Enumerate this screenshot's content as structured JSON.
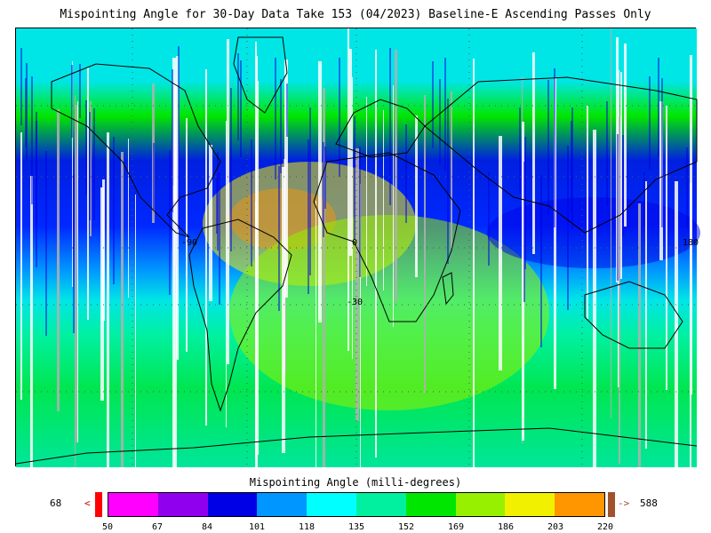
{
  "title": "Mispointing Angle for 30-Day Data Take 153 (04/2023) Baseline-E Ascending Passes Only",
  "map": {
    "lat_labels": [
      "0",
      "-30"
    ],
    "lon_labels": [
      "-90",
      "180"
    ],
    "projection": "cylindrical",
    "missing_color": "#b0b0b0"
  },
  "colorbar": {
    "title": "Mispointing Angle (milli-degrees)",
    "min_value": "68",
    "max_value": "588",
    "under_arrow": "<",
    "over_arrow": "->",
    "under_color": "#ff0000",
    "over_color": "#a0522d",
    "tick_labels": [
      "50",
      "67",
      "84",
      "101",
      "118",
      "135",
      "152",
      "169",
      "186",
      "203",
      "220"
    ],
    "colors": [
      "#ff00ff",
      "#9000ee",
      "#0000e6",
      "#0096ff",
      "#00ffff",
      "#00f0a0",
      "#00e600",
      "#96f000",
      "#f0f000",
      "#ff9600"
    ]
  }
}
